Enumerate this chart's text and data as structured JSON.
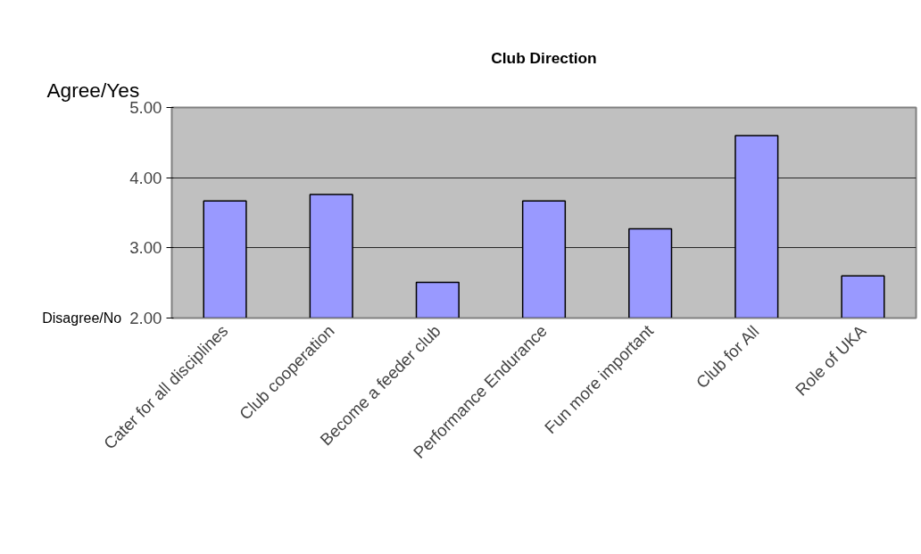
{
  "chart_data": {
    "type": "bar",
    "title": "Club Direction",
    "categories": [
      "Cater for all disciplines",
      "Club cooperation",
      "Become a feeder club",
      "Performance Endurance",
      "Fun more important",
      "Club for All",
      "Role of UKA"
    ],
    "values": [
      3.67,
      3.76,
      2.51,
      3.67,
      3.27,
      4.6,
      2.6
    ],
    "color": "#9999ff",
    "ylim": [
      2,
      5
    ],
    "yticks": [
      {
        "value": 2,
        "label": "2.00"
      },
      {
        "value": 3,
        "label": "3.00"
      },
      {
        "value": 4,
        "label": "4.00"
      },
      {
        "value": 5,
        "label": "5.00"
      }
    ],
    "grid": "y",
    "annotations": [
      "Agree/Yes",
      "Disagree/No"
    ]
  }
}
